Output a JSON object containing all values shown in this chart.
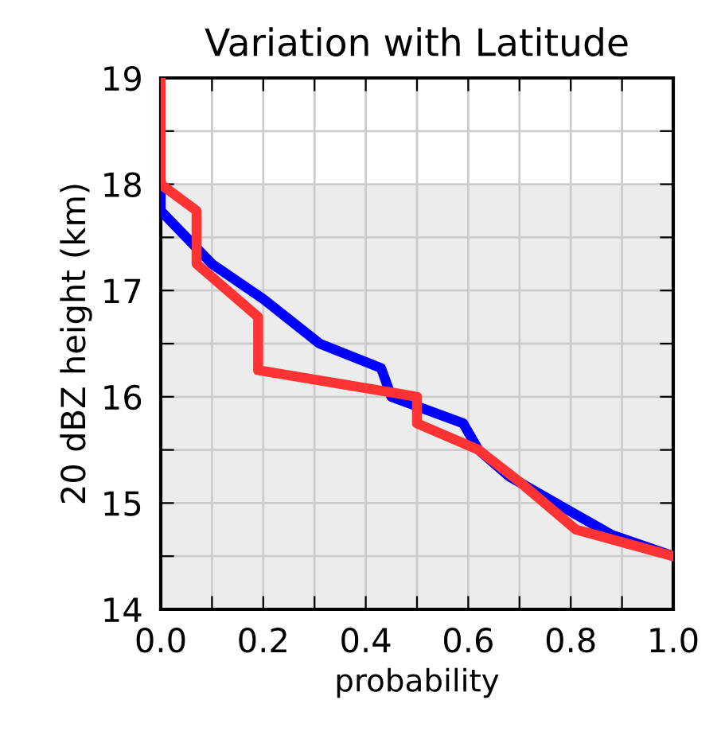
{
  "chart_data": {
    "type": "line",
    "title": "Variation with Latitude",
    "xlabel": "probability",
    "ylabel": "20 dBZ height (km)",
    "series": [
      {
        "color": "#0000ff",
        "x": [
          0,
          0,
          0.1,
          0.2,
          0.31,
          0.43,
          0.45,
          0.59,
          0.62,
          0.68,
          0.8,
          0.88,
          1.0
        ],
        "values": [
          18,
          17.75,
          17.25,
          16.92,
          16.5,
          16.27,
          16.0,
          15.75,
          15.5,
          15.25,
          14.92,
          14.7,
          14.5
        ]
      },
      {
        "color": "#ff3333",
        "x": [
          0,
          0,
          0.07,
          0.07,
          0.19,
          0.19,
          0.5,
          0.5,
          0.62,
          0.7,
          0.81,
          1.0
        ],
        "values": [
          19,
          18,
          17.75,
          17.25,
          16.75,
          16.25,
          16.0,
          15.75,
          15.5,
          15.2,
          14.75,
          14.5
        ]
      }
    ],
    "xlim": [
      0,
      1
    ],
    "ylim": [
      14,
      19
    ],
    "xticks": [
      {
        "value": 0,
        "label": "0.0"
      },
      {
        "value": 0.1,
        "label": null
      },
      {
        "value": 0.2,
        "label": "0.2"
      },
      {
        "value": 0.3,
        "label": null
      },
      {
        "value": 0.4,
        "label": "0.4"
      },
      {
        "value": 0.5,
        "label": null
      },
      {
        "value": 0.6,
        "label": "0.6"
      },
      {
        "value": 0.7,
        "label": null
      },
      {
        "value": 0.8,
        "label": "0.8"
      },
      {
        "value": 0.9,
        "label": null
      },
      {
        "value": 1,
        "label": "1.0"
      }
    ],
    "yticks": [
      14,
      {
        "value": 14.5,
        "label": null
      },
      15,
      {
        "value": 15.5,
        "label": null
      },
      16,
      {
        "value": 16.5,
        "label": null
      },
      17,
      {
        "value": 17.5,
        "label": null
      },
      18,
      {
        "value": 18.5,
        "label": null
      },
      19
    ],
    "bands": [
      {
        "axis": "y",
        "from": 14,
        "to": 18,
        "color": "#ececec"
      }
    ],
    "grid": true,
    "marker": "none",
    "line_style": "solid"
  }
}
